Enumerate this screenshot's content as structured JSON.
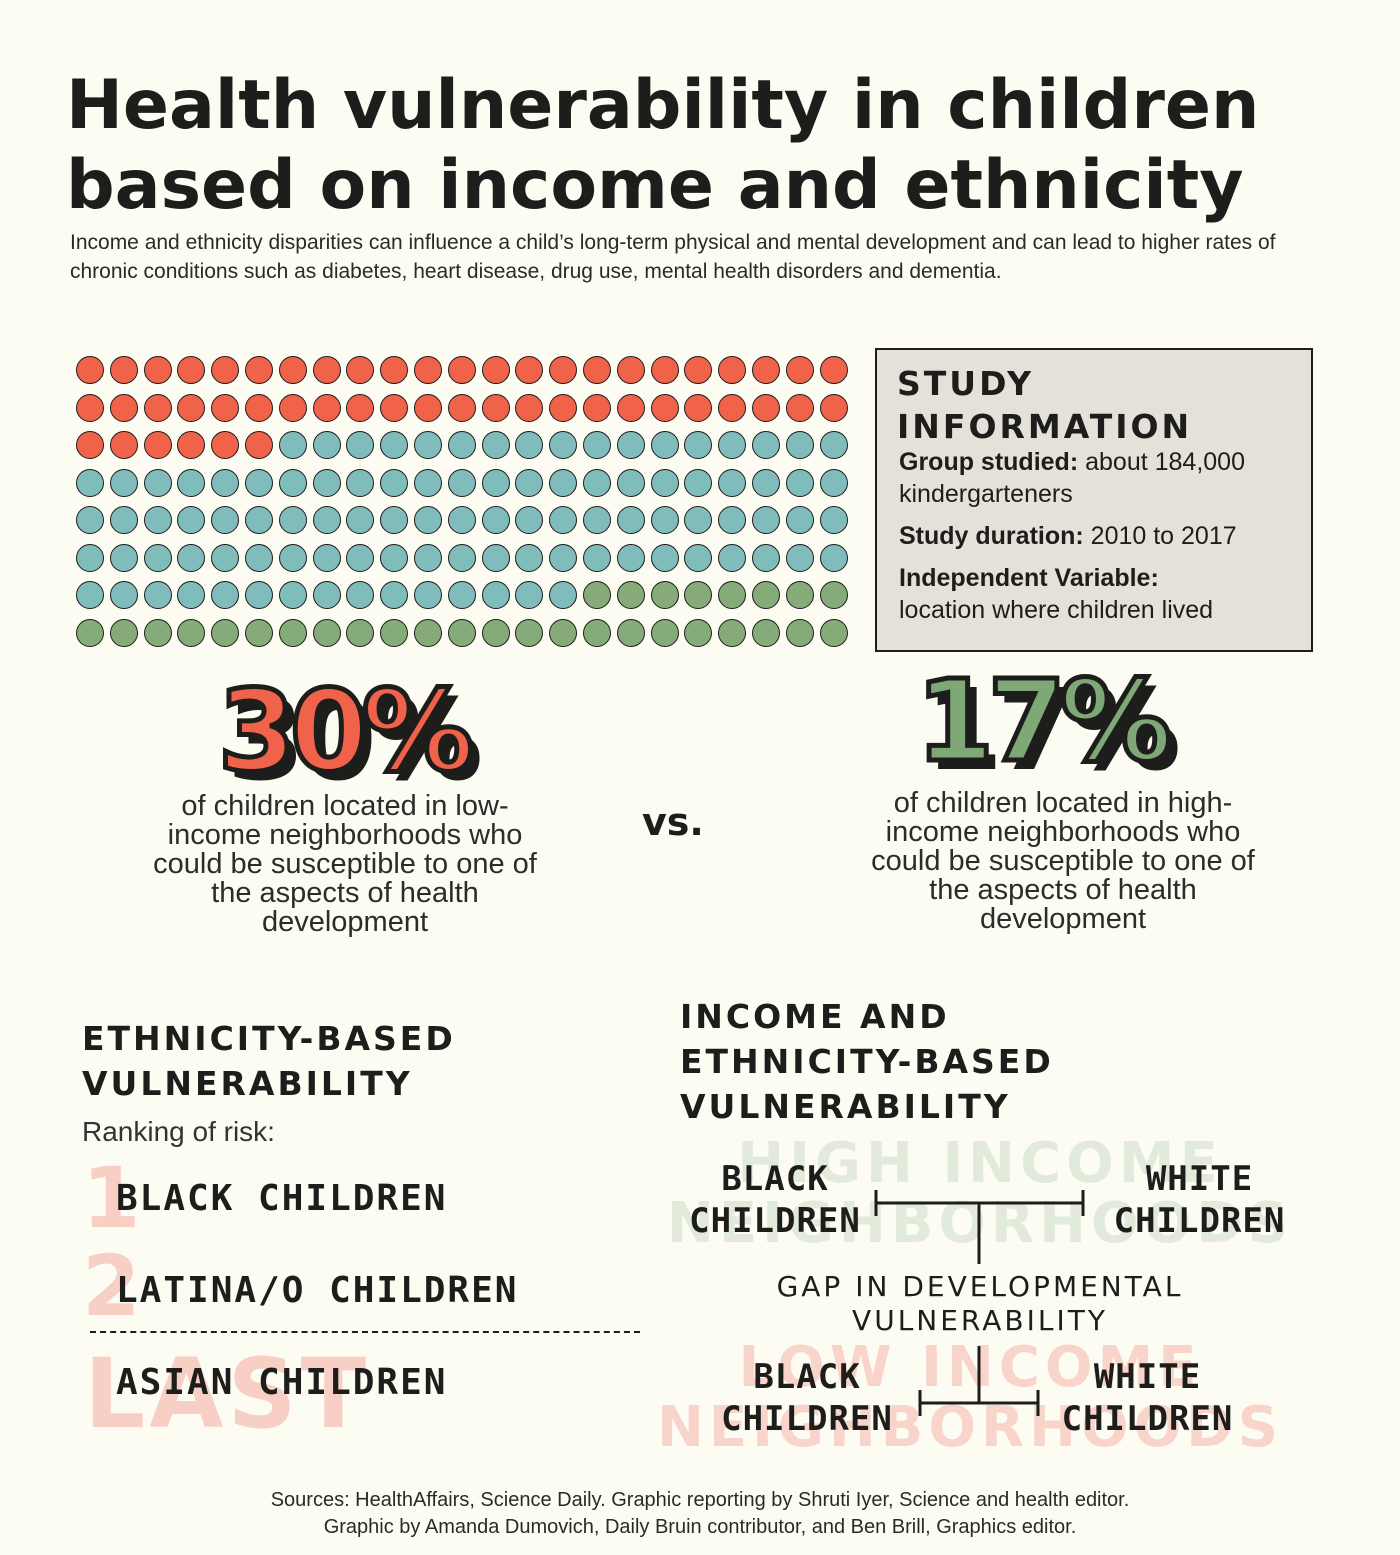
{
  "header": {
    "title_line1": "Health vulnerability in children",
    "title_line2": "based on income and ethnicity",
    "subtitle": "Income and ethnicity disparities can influence a child’s long-term physical and mental development and can lead to higher rates of chronic conditions such as diabetes, heart disease, drug use, mental health disorders and dementia."
  },
  "waffle": {
    "rows": 8,
    "cols": 23,
    "red_count": 52,
    "green_count": 31,
    "colors": {
      "red": "#f0634a",
      "teal": "#7fbcbb",
      "green": "#85ac78"
    }
  },
  "study": {
    "title_line1": "STUDY",
    "title_line2": "INFORMATION",
    "group_label": "Group studied:",
    "group_value": "about 184,000 kindergarteners",
    "duration_label": "Study duration:",
    "duration_value": "2010 to 2017",
    "variable_label": "Independent Variable:",
    "variable_value": "location where children lived"
  },
  "comparison": {
    "low_pct": "30%",
    "low_desc": "of children located in low-income neighborhoods who could be susceptible to one of the aspects of health development",
    "vs": "vs.",
    "high_pct": "17%",
    "high_desc": "of children located in high-income neighborhoods who could be susceptible to one of the aspects of health development"
  },
  "ethnicity": {
    "heading_line1": "ETHNICITY-BASED",
    "heading_line2": "VULNERABILITY",
    "ranking_label": "Ranking of risk:",
    "ranks": [
      {
        "num": "1",
        "name": "BLACK CHILDREN"
      },
      {
        "num": "2",
        "name": "LATINA/O CHILDREN"
      },
      {
        "num": "LAST",
        "name": "ASIAN CHILDREN"
      }
    ]
  },
  "income_ethnicity": {
    "heading_line1": "INCOME AND",
    "heading_line2": "ETHNICITY-BASED",
    "heading_line3": "VULNERABILITY",
    "high_bg_line1": "HIGH INCOME",
    "high_bg_line2": "NEIGHBORHOODS",
    "low_bg_line1": "LOW INCOME",
    "low_bg_line2": "NEIGHBORHOODS",
    "black_line1": "BLACK",
    "black_line2": "CHILDREN",
    "white_line1": "WHITE",
    "white_line2": "CHILDREN",
    "gap_line1": "GAP IN DEVELOPMENTAL",
    "gap_line2": "VULNERABILITY"
  },
  "footer": {
    "line1": "Sources: HealthAffairs, Science Daily. Graphic reporting by Shruti Iyer, Science and health editor.",
    "line2": "Graphic by Amanda Dumovich, Daily Bruin contributor, and Ben Brill, Graphics editor."
  }
}
